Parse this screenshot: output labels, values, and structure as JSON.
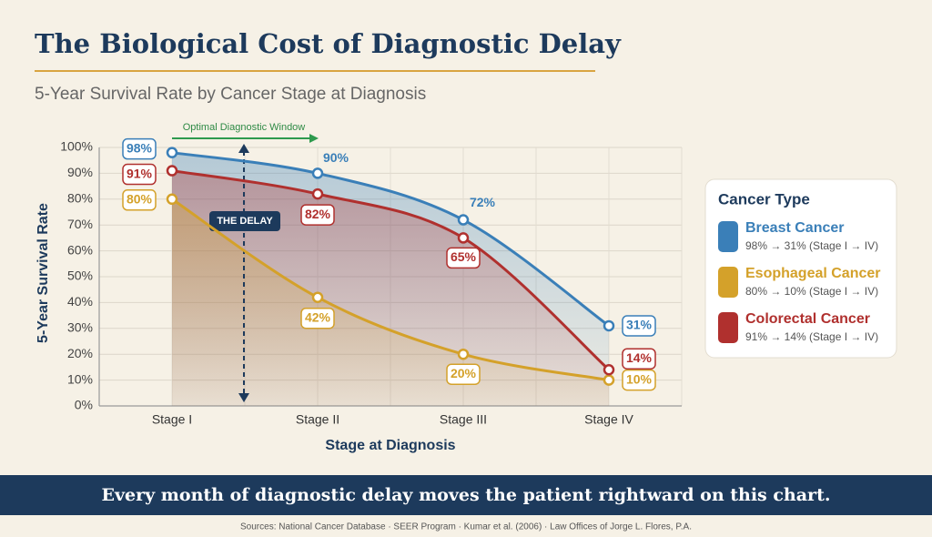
{
  "chart_data": {
    "type": "line",
    "title": "The Biological Cost of Diagnostic Delay",
    "subtitle": "5-Year Survival Rate by Cancer Stage at Diagnosis",
    "x_label": "Stage at Diagnosis",
    "y_label": "5-Year Survival Rate",
    "categories": [
      "Stage I",
      "Stage II",
      "Stage III",
      "Stage IV"
    ],
    "series": [
      {
        "name": "Breast Cancer",
        "color": "#3a7fb8",
        "values": [
          98,
          90,
          72,
          31
        ],
        "value_labels": [
          "98%",
          "90%",
          "72%",
          "31%"
        ],
        "description": "98% → 31% (Stage I → IV)"
      },
      {
        "name": "Esophageal Cancer",
        "color": "#d4a12a",
        "values": [
          80,
          42,
          20,
          10
        ],
        "value_labels": [
          "80%",
          "42%",
          "20%",
          "10%"
        ],
        "description": "80% → 10% (Stage I → IV)"
      },
      {
        "name": "Colorectal Cancer",
        "color": "#b0302e",
        "values": [
          91,
          82,
          65,
          14
        ],
        "value_labels": [
          "91%",
          "82%",
          "65%",
          "14%"
        ],
        "description": "91% → 14% (Stage I → IV)"
      }
    ],
    "ylim": [
      0,
      100
    ],
    "yticks": [
      {
        "value": 0,
        "label": "0%"
      },
      {
        "value": 10,
        "label": "10%"
      },
      {
        "value": 20,
        "label": "20%"
      },
      {
        "value": 30,
        "label": "30%"
      },
      {
        "value": 40,
        "label": "40%"
      },
      {
        "value": 50,
        "label": "50%"
      },
      {
        "value": 60,
        "label": "60%"
      },
      {
        "value": 70,
        "label": "70%"
      },
      {
        "value": 80,
        "label": "80%"
      },
      {
        "value": 90,
        "label": "90%"
      },
      {
        "value": 100,
        "label": "100%"
      }
    ],
    "grid": true,
    "legend_title": "Cancer Type",
    "legend_position": "right",
    "annotations": {
      "window": "Optimal Diagnostic Window",
      "delay": "THE DELAY"
    },
    "banner": "Every month of diagnostic delay moves the patient rightward on this chart.",
    "sources": "Sources: National Cancer Database · SEER Program · Kumar et al. (2006) · Law Offices of Jorge L. Flores, P.A."
  }
}
